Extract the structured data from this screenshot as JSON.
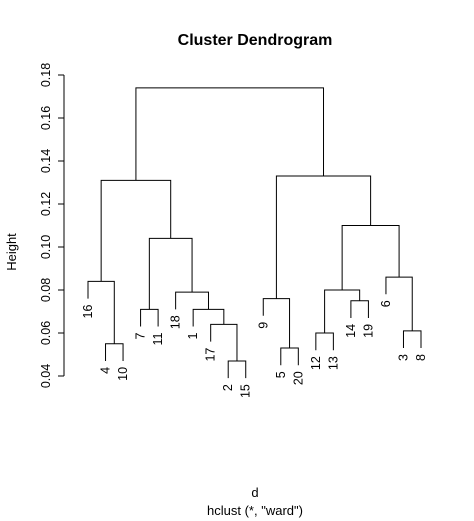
{
  "chart_data": {
    "type": "dendrogram",
    "title": "Cluster Dendrogram",
    "ylabel": "Height",
    "xlabel": "d",
    "sub": "hclust (*, \"ward\")",
    "ylim": [
      0.04,
      0.18
    ],
    "yticks": [
      "0.04",
      "0.06",
      "0.08",
      "0.10",
      "0.12",
      "0.14",
      "0.16",
      "0.18"
    ],
    "leaf_order": [
      "16",
      "4",
      "10",
      "7",
      "11",
      "18",
      "1",
      "17",
      "2",
      "15",
      "9",
      "5",
      "20",
      "12",
      "13",
      "14",
      "19",
      "6",
      "3",
      "8"
    ],
    "merges": [
      {
        "a": "L:2",
        "b": "L:15",
        "height": 0.047
      },
      {
        "a": "L:3",
        "b": "L:8",
        "height": 0.061
      },
      {
        "a": "L:5",
        "b": "L:20",
        "height": 0.053
      },
      {
        "a": "L:4",
        "b": "L:10",
        "height": 0.055
      },
      {
        "a": "L:12",
        "b": "L:13",
        "height": 0.06
      },
      {
        "a": "L:17",
        "b": "M:0",
        "height": 0.064
      },
      {
        "a": "L:7",
        "b": "L:11",
        "height": 0.071
      },
      {
        "a": "L:1",
        "b": "M:5",
        "height": 0.071
      },
      {
        "a": "L:14",
        "b": "L:19",
        "height": 0.075
      },
      {
        "a": "L:9",
        "b": "M:2",
        "height": 0.076
      },
      {
        "a": "L:18",
        "b": "M:7",
        "height": 0.079
      },
      {
        "a": "M:4",
        "b": "M:8",
        "height": 0.08
      },
      {
        "a": "L:16",
        "b": "M:3",
        "height": 0.084
      },
      {
        "a": "L:6",
        "b": "M:1",
        "height": 0.086
      },
      {
        "a": "M:6",
        "b": "M:10",
        "height": 0.104
      },
      {
        "a": "M:11",
        "b": "M:13",
        "height": 0.11
      },
      {
        "a": "M:12",
        "b": "M:14",
        "height": 0.131
      },
      {
        "a": "M:9",
        "b": "M:15",
        "height": 0.133
      },
      {
        "a": "M:16",
        "b": "M:17",
        "height": 0.174
      }
    ]
  }
}
